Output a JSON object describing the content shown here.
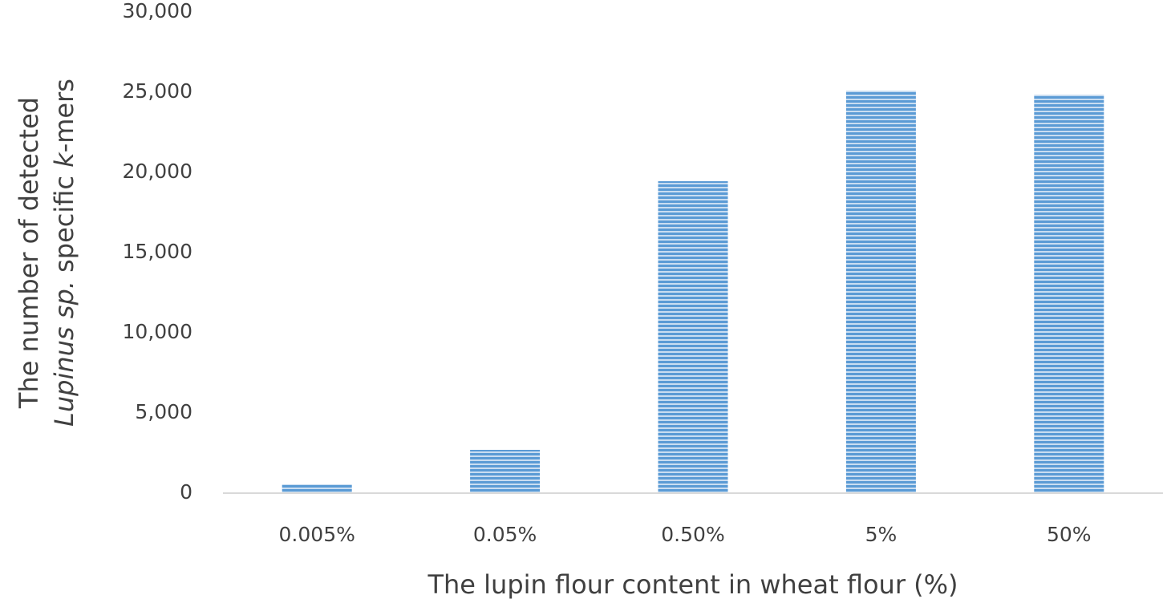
{
  "chart_data": {
    "type": "bar",
    "xlabel": "The lupin flour content in wheat flour (%)",
    "ylabel_lines": [
      [
        {
          "text": "The number of detected",
          "italic": false
        }
      ],
      [
        {
          "text": "Lupinus sp.",
          "italic": true
        },
        {
          "text": " specific ",
          "italic": false
        },
        {
          "text": "k",
          "italic": true
        },
        {
          "text": "-mers",
          "italic": false
        }
      ]
    ],
    "categories": [
      "0.005%",
      "0.05%",
      "0.50%",
      "5%",
      "50%"
    ],
    "values": [
      550,
      2700,
      19450,
      25100,
      24850
    ],
    "color": "#5b9bd5",
    "ylim": [
      0,
      30000
    ],
    "yticks": [
      0,
      {
        "value": 5000,
        "label": "5,000"
      },
      {
        "value": 10000,
        "label": "10,000"
      },
      {
        "value": 15000,
        "label": "15,000"
      },
      {
        "value": 20000,
        "label": "20,000"
      },
      {
        "value": 25000,
        "label": "25,000"
      },
      {
        "value": 30000,
        "label": "30,000"
      }
    ],
    "grid": false
  }
}
